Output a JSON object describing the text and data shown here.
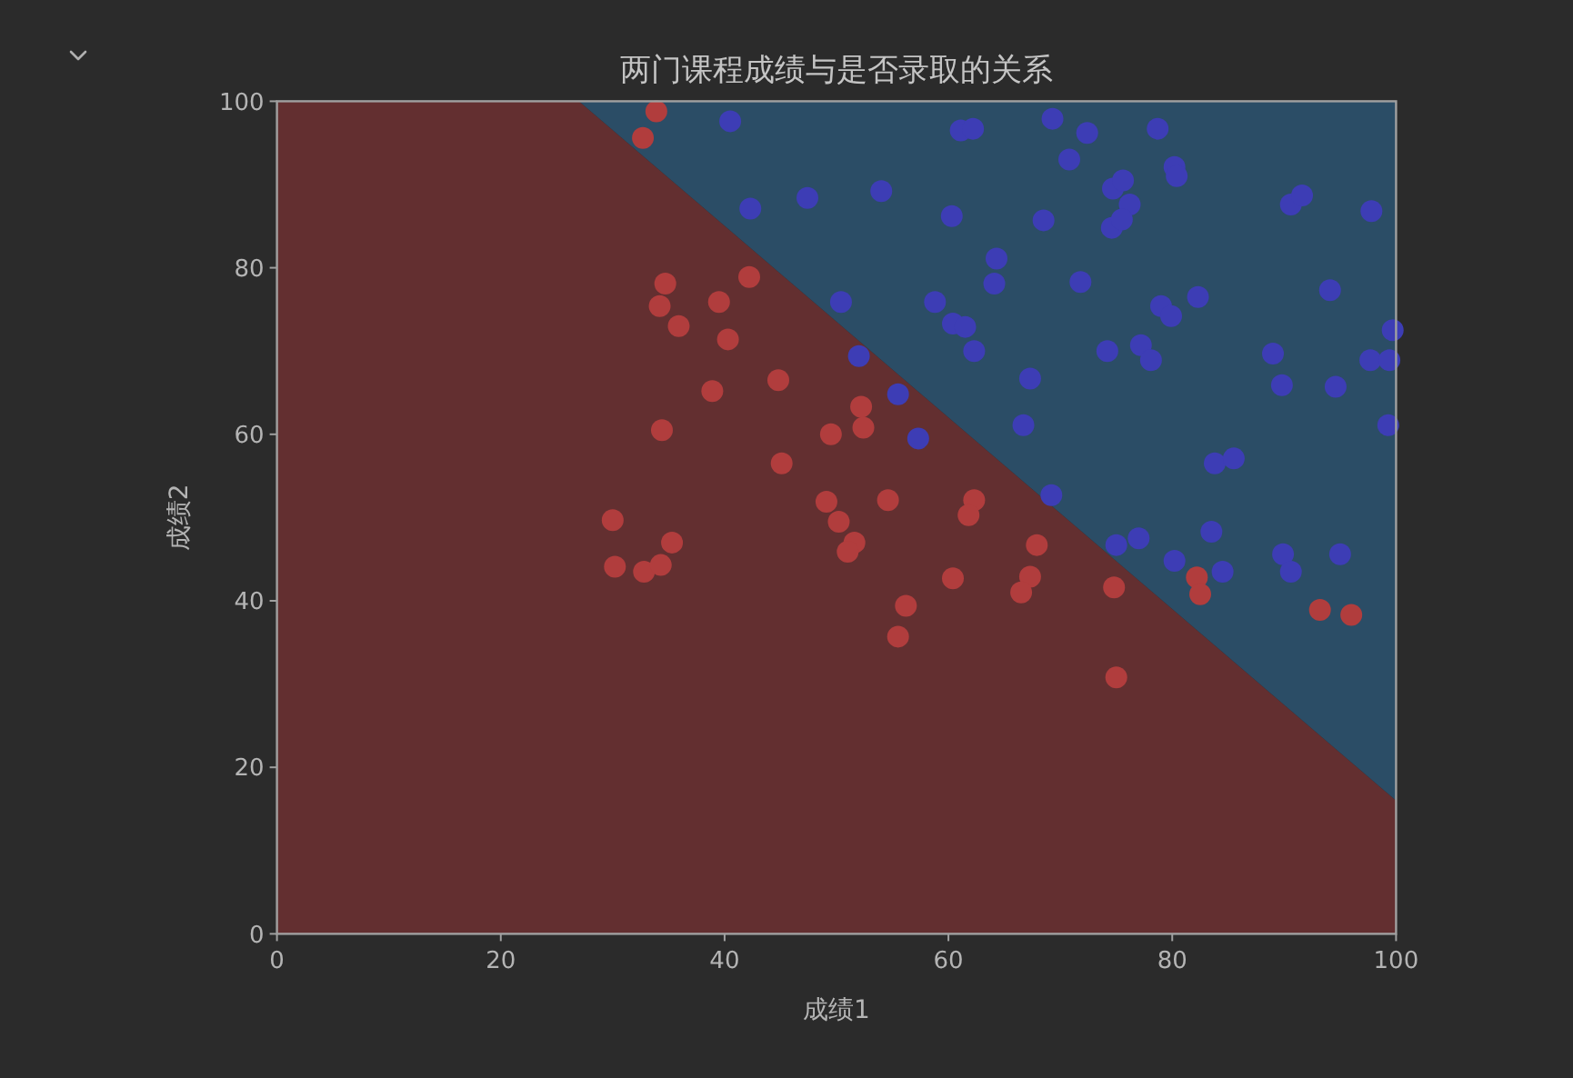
{
  "chart_data": {
    "type": "scatter",
    "title": "两门课程成绩与是否录取的关系",
    "xlabel": "成绩1",
    "ylabel": "成绩2",
    "xlim": [
      0,
      100
    ],
    "ylim": [
      0,
      100
    ],
    "xticks": [
      0,
      20,
      40,
      60,
      80,
      100
    ],
    "yticks": [
      0,
      20,
      40,
      60,
      80,
      100
    ],
    "stacked": true,
    "series": [
      {
        "type": "area",
        "color": "#632f30",
        "x": [
          0,
          27,
          100
        ],
        "values": [
          100,
          100,
          16
        ]
      },
      {
        "type": "area",
        "color": "#2b4d66",
        "x": [
          0,
          27,
          100
        ],
        "values": [
          0,
          0,
          84
        ]
      },
      {
        "color": "#b13d3d",
        "marker": "circle",
        "x": [
          33.9,
          32.7,
          34.7,
          42.2,
          34.2,
          39.5,
          35.9,
          40.3,
          44.8,
          38.9,
          34.4,
          49.5,
          52.2,
          52.4,
          45.1,
          49.1,
          54.6,
          62.3,
          61.8,
          30.0,
          50.2,
          35.3,
          51.6,
          51.0,
          30.2,
          32.8,
          34.3,
          67.9,
          60.4,
          67.3,
          66.5,
          56.2,
          55.5,
          74.8,
          75.0,
          82.2,
          82.5,
          93.2,
          96.0
        ],
        "values": [
          98.8,
          95.6,
          78.1,
          78.9,
          75.4,
          75.9,
          73.0,
          71.4,
          66.5,
          65.2,
          60.5,
          60.0,
          63.3,
          60.8,
          56.5,
          51.9,
          52.1,
          52.1,
          50.3,
          49.7,
          49.5,
          47.0,
          47.0,
          45.9,
          44.1,
          43.5,
          44.3,
          46.7,
          42.7,
          42.9,
          41.0,
          39.4,
          35.7,
          41.6,
          30.8,
          42.8,
          40.8,
          38.9,
          38.3
        ]
      },
      {
        "color": "#3d3db5",
        "marker": "circle",
        "x": [
          40.5,
          42.3,
          47.4,
          61.1,
          62.2,
          69.3,
          72.4,
          78.7,
          70.8,
          80.2,
          80.4,
          54.0,
          74.7,
          75.6,
          76.2,
          74.6,
          75.5,
          60.3,
          68.5,
          90.6,
          91.6,
          97.8,
          64.3,
          64.1,
          71.8,
          50.4,
          58.8,
          79.0,
          79.9,
          82.3,
          94.1,
          60.4,
          61.5,
          62.3,
          52.0,
          74.2,
          77.2,
          78.1,
          89.0,
          97.7,
          99.4,
          99.7,
          67.3,
          89.8,
          94.6,
          55.5,
          57.3,
          66.7,
          99.3,
          83.8,
          85.5,
          69.2,
          83.5,
          75.0,
          77.0,
          80.2,
          84.5,
          89.9,
          90.6,
          95.0
        ],
        "values": [
          97.6,
          87.1,
          88.4,
          96.5,
          96.7,
          97.9,
          96.2,
          96.7,
          93.0,
          92.1,
          91.0,
          89.2,
          89.5,
          90.5,
          87.6,
          84.8,
          85.8,
          86.2,
          85.7,
          87.6,
          88.7,
          86.8,
          81.1,
          78.1,
          78.3,
          75.9,
          75.9,
          75.4,
          74.2,
          76.5,
          77.3,
          73.3,
          72.9,
          70.0,
          69.4,
          70.0,
          70.7,
          68.9,
          69.7,
          68.9,
          68.9,
          72.5,
          66.7,
          65.9,
          65.7,
          64.8,
          59.5,
          61.1,
          61.1,
          56.5,
          57.1,
          52.7,
          48.3,
          46.7,
          47.5,
          44.8,
          43.5,
          45.6,
          43.5,
          45.6
        ]
      }
    ]
  }
}
